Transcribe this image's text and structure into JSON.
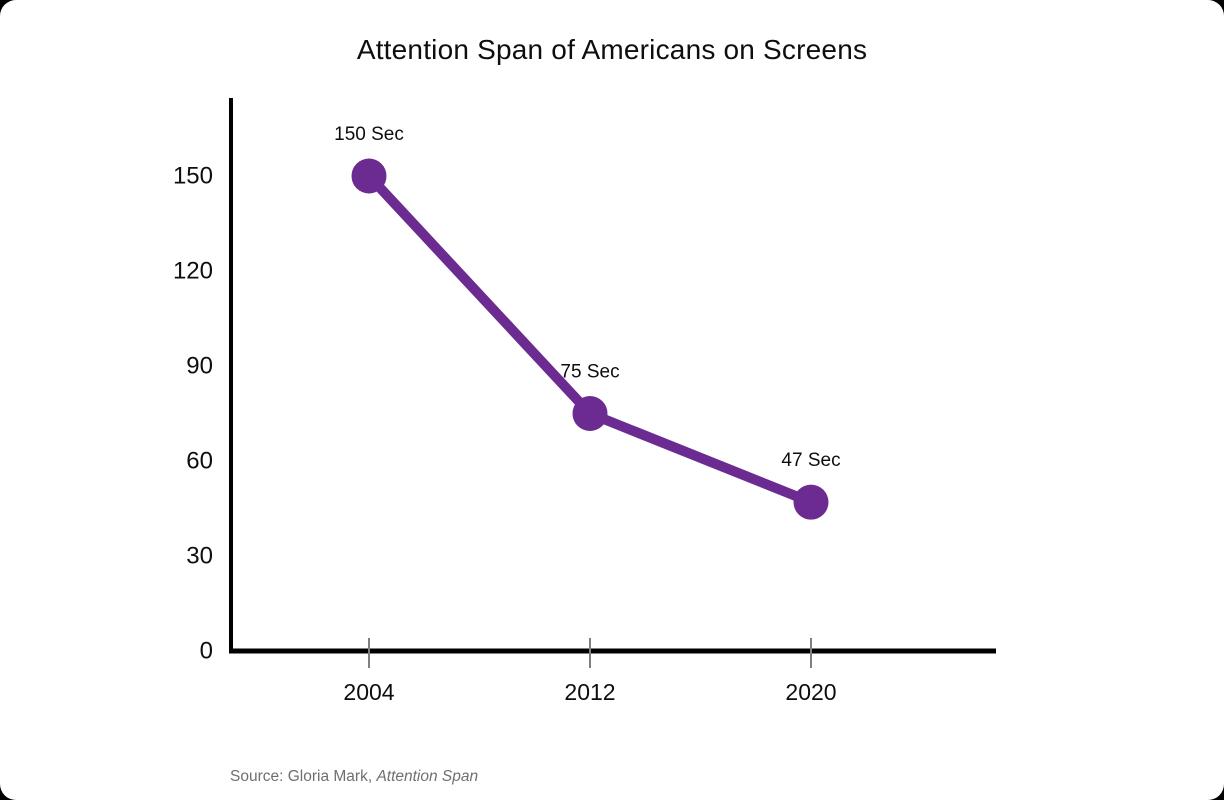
{
  "page": {
    "title": "Attention Span of Americans on Screens",
    "source_prefix": "Source: Gloria Mark, ",
    "source_work": "Attention Span"
  },
  "chart_data": {
    "type": "line",
    "title": "Attention Span of Americans on Screens",
    "categories": [
      "2004",
      "2012",
      "2020"
    ],
    "values": [
      150,
      75,
      47
    ],
    "point_labels": [
      "150 Sec",
      "75 Sec",
      "47 Sec"
    ],
    "unit": "Sec",
    "xlabel": "",
    "ylabel": "",
    "ylim": [
      0,
      150
    ],
    "yticks": [
      0,
      30,
      60,
      90,
      120,
      150
    ],
    "grid": false,
    "legend": false,
    "line_color": "#6C2B90",
    "axis_color": "#000000",
    "tick_color": "#7F7F7F",
    "label_color": "#0E0E0E",
    "source": "Source: Gloria Mark, Attention Span"
  }
}
